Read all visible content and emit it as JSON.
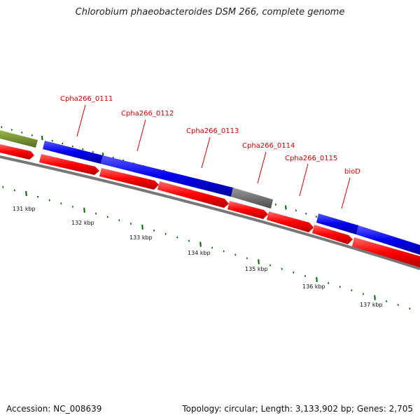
{
  "title": "Chlorobium phaeobacteroides DSM 266, complete genome",
  "accession": "Accession: NC_008639",
  "summary": "Topology: circular; Length: 3,133,902 bp; Genes: 2,705",
  "gene_labels": [
    "Cpha266_0111",
    "Cpha266_0112",
    "Cpha266_0113",
    "Cpha266_0114",
    "Cpha266_0115",
    "bioD"
  ],
  "scale_labels": [
    "131 kbp",
    "132 kbp",
    "133 kbp",
    "134 kbp",
    "135 kbp",
    "136 kbp",
    "137 kbp"
  ],
  "colors": {
    "cds_red": "#ff0000",
    "gene_blue": "#0000ee",
    "olive": "#6b8e23",
    "gray_feature": "#666666",
    "backbone": "#777777",
    "tick_green": "#006400",
    "label_red": "#d40000"
  }
}
